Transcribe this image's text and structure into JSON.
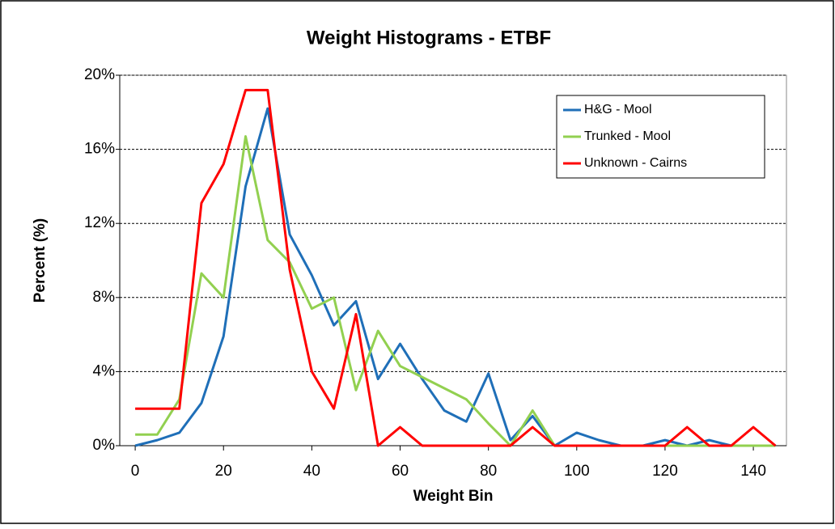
{
  "chart_data": {
    "type": "line",
    "title": "Weight Histograms  - ETBF",
    "x_label": "Weight Bin",
    "y_label": "Percent (%)",
    "x": [
      0,
      5,
      10,
      15,
      20,
      25,
      30,
      35,
      40,
      45,
      50,
      55,
      60,
      65,
      70,
      75,
      80,
      85,
      90,
      95,
      100,
      105,
      110,
      115,
      120,
      125,
      130,
      135,
      140,
      145
    ],
    "series": [
      {
        "name": "H&G - Mool",
        "color": "#1f6fb8",
        "values": [
          0,
          0.3,
          0.7,
          2.3,
          5.9,
          14,
          18.2,
          11.4,
          9.2,
          6.5,
          7.8,
          3.6,
          5.5,
          3.6,
          1.9,
          1.3,
          3.9,
          0.3,
          1.6,
          0,
          0.7,
          0.3,
          0,
          0,
          0.3,
          0,
          0.3,
          0,
          0,
          0
        ]
      },
      {
        "name": "Trunked - Mool",
        "color": "#92d050",
        "values": [
          0.6,
          0.6,
          2.5,
          9.3,
          8,
          16.7,
          11.1,
          9.9,
          7.4,
          8,
          3,
          6.2,
          4.3,
          3.7,
          3.1,
          2.5,
          1.2,
          0,
          1.9,
          0,
          0,
          0,
          0,
          0,
          0,
          0,
          0,
          0,
          0,
          0
        ]
      },
      {
        "name": "Unknown - Cairns",
        "color": "#ff0000",
        "values": [
          2,
          2,
          2,
          13.1,
          15.2,
          19.2,
          19.2,
          9.5,
          4,
          2,
          7.1,
          0,
          1,
          0,
          0,
          0,
          0,
          0,
          1,
          0,
          0,
          0,
          0,
          0,
          0,
          1,
          0,
          0,
          1,
          0
        ]
      }
    ],
    "xlim": [
      -3.5,
      147.5
    ],
    "xticks": [
      0,
      20,
      40,
      60,
      80,
      100,
      120,
      140
    ],
    "ylim": [
      0,
      20
    ],
    "yticks": [
      {
        "value": 0,
        "label": "0%"
      },
      {
        "value": 4,
        "label": "4%"
      },
      {
        "value": 8,
        "label": "8%"
      },
      {
        "value": 12,
        "label": "12%"
      },
      {
        "value": 16,
        "label": "16%"
      },
      {
        "value": 20,
        "label": "20%"
      }
    ],
    "grid": true,
    "legend": "upper right"
  }
}
